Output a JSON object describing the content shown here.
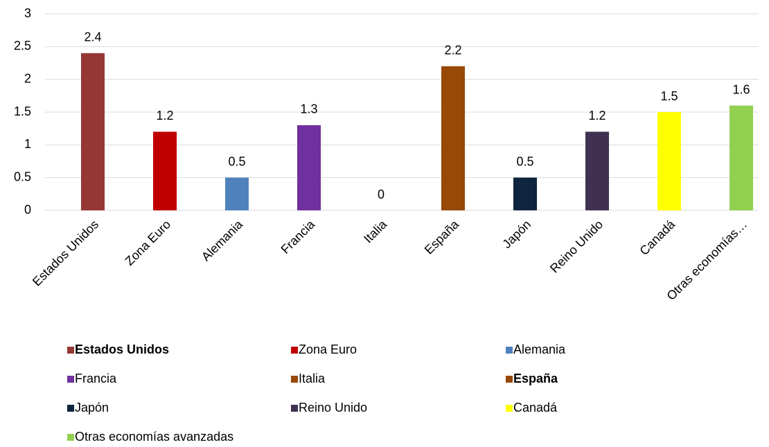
{
  "chart_data": {
    "type": "bar",
    "categories": [
      "Estados Unidos",
      "Zona Euro",
      "Alemania",
      "Francia",
      "Italia",
      "España",
      "Japón",
      "Reino Unido",
      "Canadá",
      "Otras economías…"
    ],
    "values": [
      2.4,
      1.2,
      0.5,
      1.3,
      0,
      2.2,
      0.5,
      1.2,
      1.5,
      1.6
    ],
    "colors": [
      "#953735",
      "#C00000",
      "#4F81BD",
      "#7030A0",
      "#984807",
      "#984807",
      "#0F243E",
      "#403152",
      "#FFFF00",
      "#92D050"
    ],
    "ylim": [
      0,
      3
    ],
    "yticks": [
      0,
      0.5,
      1,
      1.5,
      2,
      2.5,
      3
    ],
    "grid": true,
    "legend": {
      "position": "bottom",
      "names": [
        "Estados Unidos",
        "Zona Euro",
        "Alemania",
        "Francia",
        "Italia",
        "España",
        "Japón",
        "Reino Unido",
        "Canadá",
        "Otras economías avanzadas"
      ],
      "bold": [
        true,
        false,
        false,
        false,
        false,
        true,
        false,
        false,
        false,
        false
      ]
    }
  }
}
